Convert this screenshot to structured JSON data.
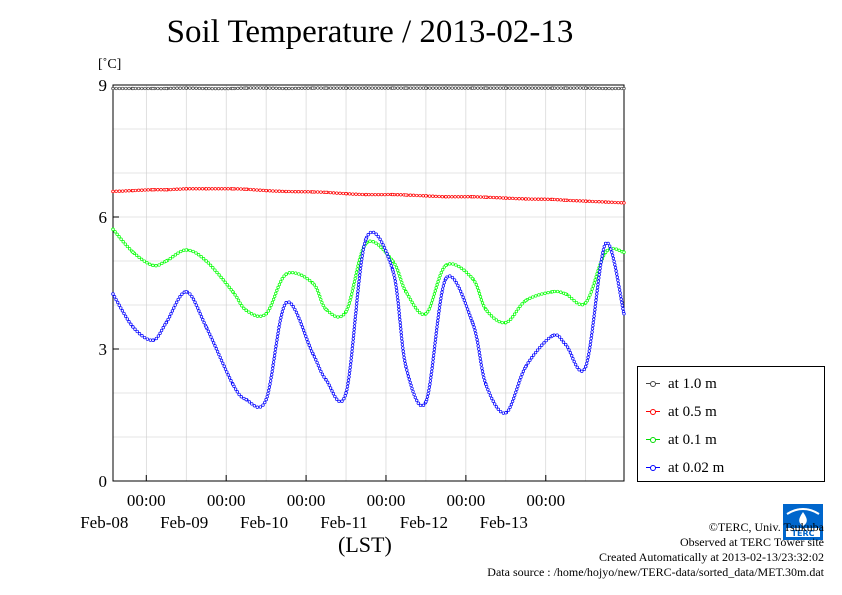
{
  "chart_data": {
    "type": "line",
    "title": "Soil Temperature / 2013-02-13",
    "ylabel": "[˚C]",
    "xlabel": "(LST)",
    "ylim": [
      0,
      9
    ],
    "yticks": [
      0,
      3,
      6,
      9
    ],
    "xlim": [
      "2013-02-07 14:00",
      "2013-02-13 23:30"
    ],
    "xticks": [
      {
        "time": "2013-02-08 00:00",
        "label": "00:00",
        "date": "Feb-08"
      },
      {
        "time": "2013-02-09 00:00",
        "label": "00:00",
        "date": "Feb-09"
      },
      {
        "time": "2013-02-10 00:00",
        "label": "00:00",
        "date": "Feb-10"
      },
      {
        "time": "2013-02-11 00:00",
        "label": "00:00",
        "date": "Feb-11"
      },
      {
        "time": "2013-02-12 00:00",
        "label": "00:00",
        "date": "Feb-12"
      },
      {
        "time": "2013-02-13 00:00",
        "label": "00:00",
        "date": "Feb-13"
      }
    ],
    "grid": true,
    "legend_position": "right",
    "x": [
      "2013-02-07 14:00",
      "2013-02-07 20:00",
      "2013-02-08 02:00",
      "2013-02-08 06:00",
      "2013-02-08 12:00",
      "2013-02-08 18:00",
      "2013-02-09 02:00",
      "2013-02-09 06:00",
      "2013-02-09 12:00",
      "2013-02-09 18:00",
      "2013-02-10 02:00",
      "2013-02-10 06:00",
      "2013-02-10 12:00",
      "2013-02-10 18:00",
      "2013-02-11 02:00",
      "2013-02-11 06:00",
      "2013-02-11 12:00",
      "2013-02-11 18:00",
      "2013-02-12 02:00",
      "2013-02-12 06:00",
      "2013-02-12 12:00",
      "2013-02-12 18:00",
      "2013-02-13 02:00",
      "2013-02-13 06:00",
      "2013-02-13 12:00",
      "2013-02-13 18:00",
      "2013-02-13 23:30"
    ],
    "series": [
      {
        "name": "at 1.0 m",
        "color": "#444444",
        "values": [
          8.92,
          8.92,
          8.92,
          8.92,
          8.93,
          8.92,
          8.92,
          8.93,
          8.93,
          8.92,
          8.93,
          8.93,
          8.93,
          8.93,
          8.93,
          8.93,
          8.93,
          8.93,
          8.93,
          8.93,
          8.93,
          8.93,
          8.93,
          8.93,
          8.93,
          8.92,
          8.92
        ]
      },
      {
        "name": "at 0.5 m",
        "color": "#ff0000",
        "values": [
          6.58,
          6.6,
          6.62,
          6.62,
          6.64,
          6.64,
          6.64,
          6.63,
          6.6,
          6.58,
          6.57,
          6.56,
          6.53,
          6.51,
          6.51,
          6.5,
          6.48,
          6.46,
          6.46,
          6.45,
          6.43,
          6.41,
          6.4,
          6.38,
          6.36,
          6.34,
          6.32
        ]
      },
      {
        "name": "at 0.1 m",
        "color": "#00ff00",
        "values": [
          5.72,
          5.2,
          4.9,
          5.0,
          5.25,
          5.0,
          4.3,
          3.88,
          3.8,
          4.7,
          4.5,
          3.9,
          3.85,
          5.4,
          5.0,
          4.3,
          3.8,
          4.9,
          4.6,
          3.9,
          3.6,
          4.1,
          4.3,
          4.25,
          4.05,
          5.2,
          5.2
        ]
      },
      {
        "name": "at 0.02 m",
        "color": "#0000ff",
        "values": [
          4.25,
          3.5,
          3.2,
          3.6,
          4.3,
          3.5,
          2.2,
          1.85,
          1.85,
          4.05,
          2.9,
          2.3,
          2.0,
          5.5,
          4.8,
          2.6,
          1.8,
          4.6,
          3.6,
          2.2,
          1.55,
          2.6,
          3.3,
          3.1,
          2.6,
          5.4,
          3.8
        ]
      }
    ]
  },
  "credits": {
    "line1": "©TERC, Univ. Tsukuba",
    "line2": "Observed at TERC Tower site",
    "line3": "Created Automatically at 2013-02-13/23:32:02",
    "line4": "Data source : /home/hojyo/new/TERC-data/sorted_data/MET.30m.dat"
  },
  "logo": {
    "text": "TERC",
    "color": "#0066cc"
  }
}
